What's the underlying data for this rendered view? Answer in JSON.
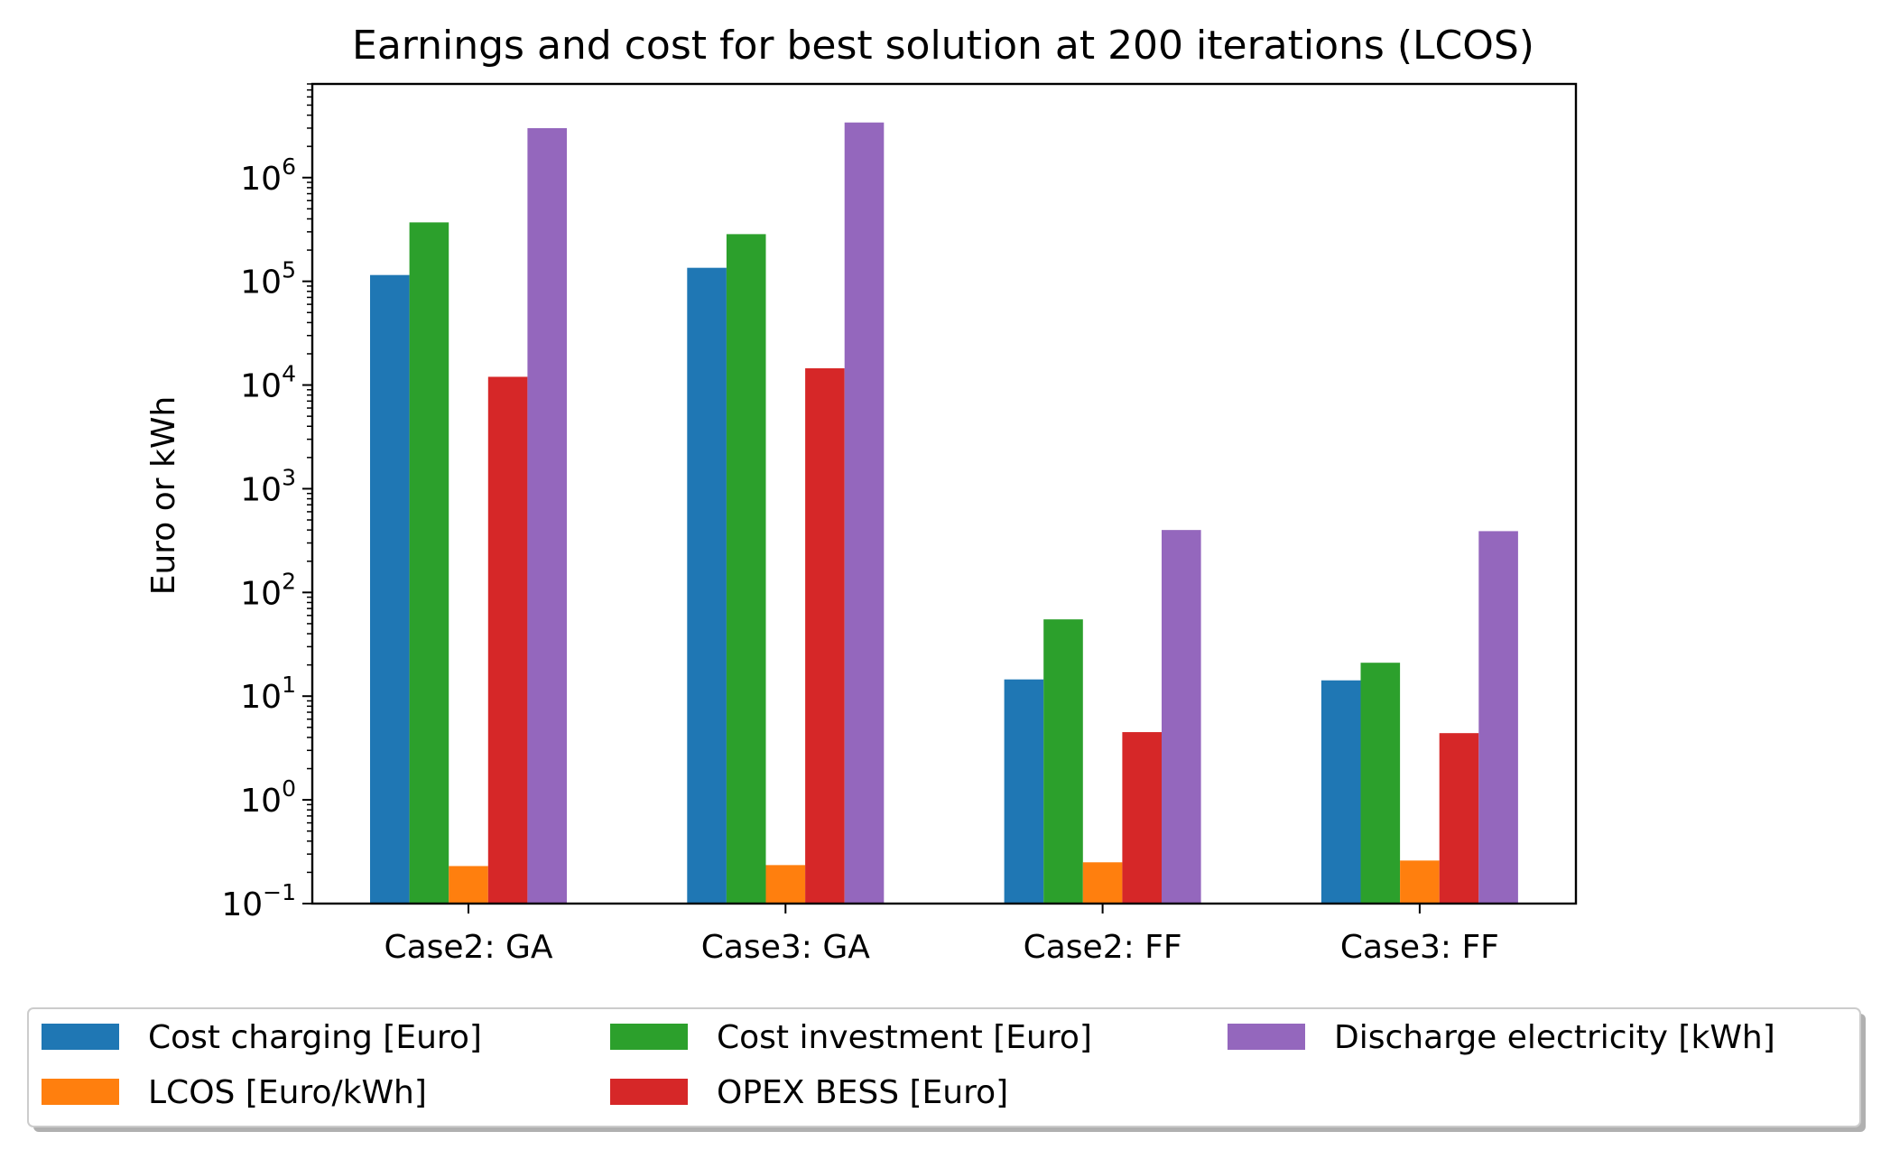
{
  "chart_data": {
    "type": "bar",
    "title": "Earnings and cost for best solution at 200 iterations (LCOS)",
    "xlabel": "",
    "ylabel": "Euro or kWh",
    "yscale": "log",
    "ylim": [
      0.1,
      8000000
    ],
    "yticks": [
      {
        "base": "10",
        "exp": "−1",
        "value": 0.1
      },
      {
        "base": "10",
        "exp": "0",
        "value": 1
      },
      {
        "base": "10",
        "exp": "1",
        "value": 10
      },
      {
        "base": "10",
        "exp": "2",
        "value": 100
      },
      {
        "base": "10",
        "exp": "3",
        "value": 1000
      },
      {
        "base": "10",
        "exp": "4",
        "value": 10000
      },
      {
        "base": "10",
        "exp": "5",
        "value": 100000
      },
      {
        "base": "10",
        "exp": "6",
        "value": 1000000
      }
    ],
    "categories": [
      "Case2: GA",
      "Case3: GA",
      "Case2: FF",
      "Case3: FF"
    ],
    "series": [
      {
        "name": "Cost charging [Euro]",
        "color": "#1f77b4",
        "values": [
          115000,
          135000,
          14.5,
          14.2
        ]
      },
      {
        "name": "LCOS [Euro/kWh]",
        "color": "#ff7f0e",
        "values": [
          0.23,
          0.235,
          0.25,
          0.26
        ]
      },
      {
        "name": "Cost investment [Euro]",
        "color": "#2ca02c",
        "values": [
          370000,
          285000,
          55,
          21
        ]
      },
      {
        "name": "OPEX BESS [Euro]",
        "color": "#d62728",
        "values": [
          12000,
          14500,
          4.5,
          4.4
        ]
      },
      {
        "name": "Discharge electricity [kWh]",
        "color": "#9467bd",
        "values": [
          3000000,
          3400000,
          400,
          390
        ]
      }
    ],
    "legend": {
      "placement": "bottom, outside plot",
      "columns": 3
    },
    "grid": false
  }
}
